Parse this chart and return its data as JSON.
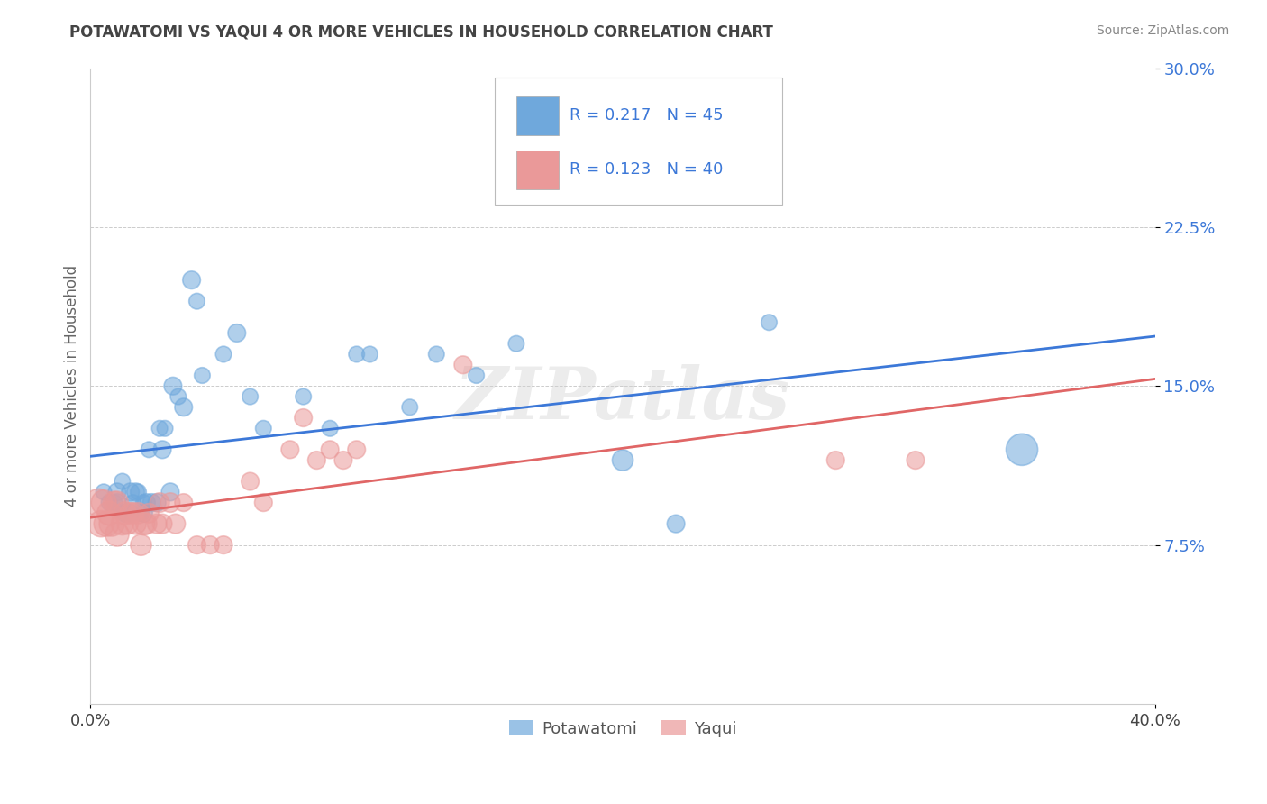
{
  "title": "POTAWATOMI VS YAQUI 4 OR MORE VEHICLES IN HOUSEHOLD CORRELATION CHART",
  "source": "Source: ZipAtlas.com",
  "ylabel": "4 or more Vehicles in Household",
  "xlim": [
    0.0,
    0.4
  ],
  "ylim": [
    0.0,
    0.3
  ],
  "potawatomi_color": "#6fa8dc",
  "potawatomi_edge": "#6fa8dc",
  "yaqui_color": "#ea9999",
  "yaqui_edge": "#ea9999",
  "trendline1_color": "#3c78d8",
  "trendline2_color": "#e06666",
  "watermark": "ZIPatlas",
  "legend_text_color": "#3c78d8",
  "ytick_color": "#3c78d8",
  "potawatomi_x": [
    0.005,
    0.007,
    0.009,
    0.01,
    0.01,
    0.012,
    0.013,
    0.015,
    0.015,
    0.016,
    0.017,
    0.018,
    0.019,
    0.02,
    0.02,
    0.021,
    0.022,
    0.023,
    0.025,
    0.026,
    0.027,
    0.028,
    0.03,
    0.031,
    0.033,
    0.035,
    0.038,
    0.04,
    0.042,
    0.05,
    0.055,
    0.06,
    0.065,
    0.08,
    0.09,
    0.1,
    0.105,
    0.12,
    0.13,
    0.145,
    0.16,
    0.2,
    0.22,
    0.255,
    0.35
  ],
  "potawatomi_y": [
    0.1,
    0.095,
    0.095,
    0.095,
    0.1,
    0.105,
    0.09,
    0.09,
    0.1,
    0.095,
    0.1,
    0.1,
    0.09,
    0.09,
    0.095,
    0.095,
    0.12,
    0.095,
    0.095,
    0.13,
    0.12,
    0.13,
    0.1,
    0.15,
    0.145,
    0.14,
    0.2,
    0.19,
    0.155,
    0.165,
    0.175,
    0.145,
    0.13,
    0.145,
    0.13,
    0.165,
    0.165,
    0.14,
    0.165,
    0.155,
    0.17,
    0.115,
    0.085,
    0.18,
    0.12
  ],
  "potawatomi_sizes": [
    20,
    20,
    20,
    25,
    25,
    20,
    25,
    25,
    25,
    20,
    25,
    20,
    20,
    25,
    20,
    25,
    20,
    25,
    25,
    20,
    25,
    20,
    25,
    25,
    20,
    25,
    25,
    20,
    20,
    20,
    25,
    20,
    20,
    20,
    20,
    20,
    20,
    20,
    20,
    20,
    20,
    35,
    25,
    20,
    80
  ],
  "yaqui_x": [
    0.003,
    0.004,
    0.005,
    0.006,
    0.007,
    0.008,
    0.009,
    0.01,
    0.01,
    0.012,
    0.013,
    0.014,
    0.015,
    0.016,
    0.017,
    0.018,
    0.019,
    0.02,
    0.021,
    0.022,
    0.025,
    0.026,
    0.027,
    0.03,
    0.032,
    0.035,
    0.04,
    0.045,
    0.05,
    0.06,
    0.065,
    0.075,
    0.08,
    0.085,
    0.09,
    0.095,
    0.1,
    0.14,
    0.28,
    0.31
  ],
  "yaqui_y": [
    0.095,
    0.085,
    0.095,
    0.085,
    0.09,
    0.085,
    0.095,
    0.08,
    0.095,
    0.085,
    0.09,
    0.085,
    0.09,
    0.09,
    0.085,
    0.09,
    0.075,
    0.085,
    0.085,
    0.09,
    0.085,
    0.095,
    0.085,
    0.095,
    0.085,
    0.095,
    0.075,
    0.075,
    0.075,
    0.105,
    0.095,
    0.12,
    0.135,
    0.115,
    0.12,
    0.115,
    0.12,
    0.16,
    0.115,
    0.115
  ],
  "yaqui_sizes": [
    60,
    55,
    50,
    50,
    45,
    50,
    40,
    45,
    40,
    40,
    40,
    35,
    35,
    35,
    35,
    35,
    35,
    40,
    35,
    30,
    30,
    30,
    30,
    30,
    30,
    25,
    25,
    25,
    25,
    25,
    25,
    25,
    25,
    25,
    25,
    25,
    25,
    25,
    25,
    25
  ]
}
